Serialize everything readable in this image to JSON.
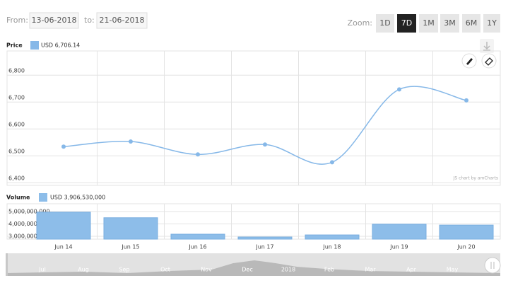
{
  "controls": {
    "from_label": "From:",
    "from_date": "13-06-2018",
    "to_label": "to:",
    "to_date": "21-06-2018",
    "zoom_label": "Zoom:",
    "zoom_buttons": [
      "1D",
      "7D",
      "1M",
      "3M",
      "6M",
      "1Y"
    ],
    "active_zoom": 1
  },
  "chart_data": [
    {
      "type": "line",
      "title": "Price",
      "series": [
        {
          "name": "USD 6,706.14",
          "color": "#86b8e8",
          "values": [
            6534,
            6553,
            6505,
            6542,
            6476,
            6747,
            6706
          ]
        }
      ],
      "ylim": [
        6390,
        6890
      ],
      "yticks": [
        {
          "value": 6400,
          "label": "6,400"
        },
        {
          "value": 6500,
          "label": "6,500"
        },
        {
          "value": 6600,
          "label": "6,600"
        },
        {
          "value": 6700,
          "label": "6,700"
        },
        {
          "value": 6800,
          "label": "6,800"
        }
      ],
      "grid": true
    },
    {
      "type": "bar",
      "title": "Volume",
      "categories": [
        "Jun 14",
        "Jun 15",
        "Jun 16",
        "Jun 17",
        "Jun 18",
        "Jun 19",
        "Jun 20"
      ],
      "series": [
        {
          "name": "USD 3,906,530,000",
          "color": "#8dbde9",
          "values": [
            4950000000,
            4500000000,
            3170000000,
            2940000000,
            3110000000,
            3980000000,
            3906530000
          ]
        }
      ],
      "ylim": [
        2770000000,
        5630000000
      ],
      "yticks": [
        {
          "value": 3000000000,
          "label": "3,000,000,000"
        },
        {
          "value": 4000000000,
          "label": "4,000,000,000"
        },
        {
          "value": 5000000000,
          "label": "5,000,000,000"
        }
      ],
      "grid": true
    }
  ],
  "navigator": {
    "labels": [
      "Jul",
      "Aug",
      "Sep",
      "Oct",
      "Nov",
      "Dec",
      "2018",
      "Feb",
      "Mar",
      "Apr",
      "May"
    ]
  },
  "credit": "JS chart by amCharts"
}
